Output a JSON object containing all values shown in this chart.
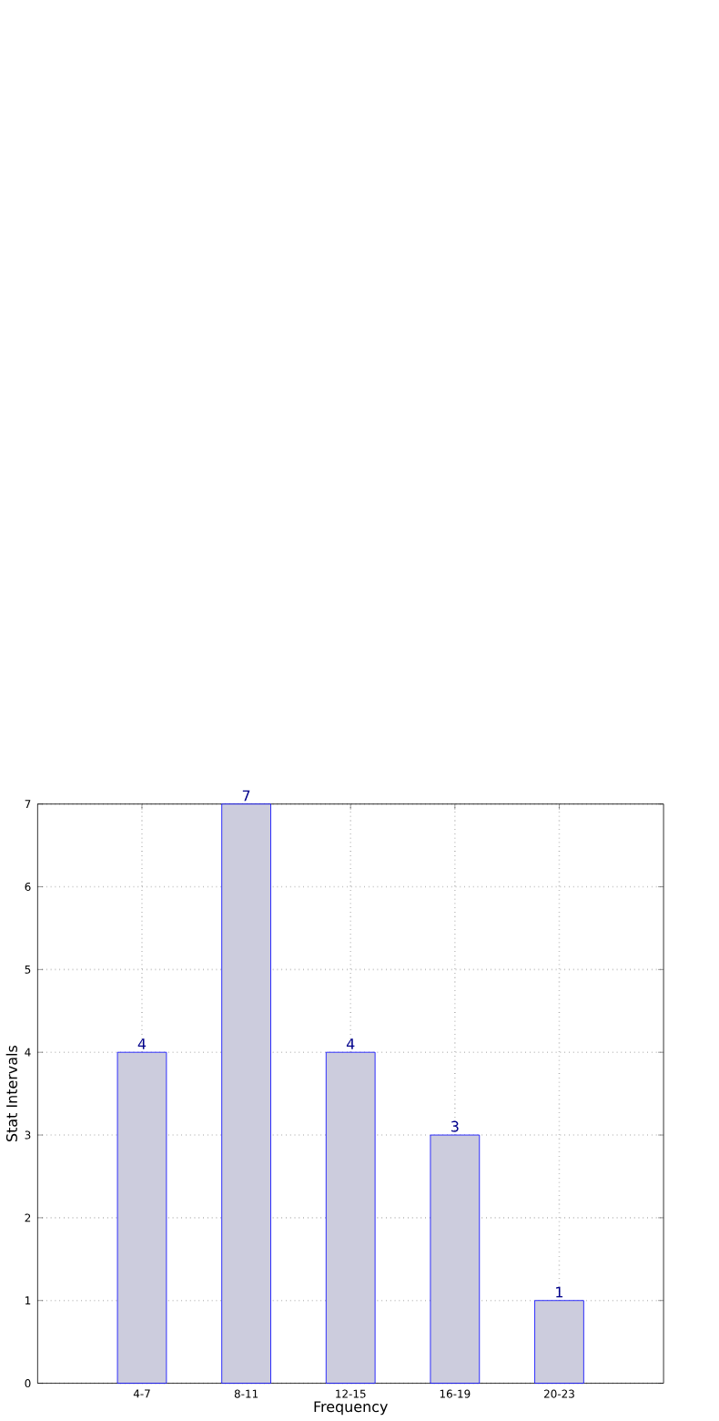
{
  "chart_data": {
    "type": "bar",
    "xlabel": "Frequency",
    "ylabel": "Stat Intervals",
    "categories": [
      "4-7",
      "8-11",
      "12-15",
      "16-19",
      "20-23"
    ],
    "values": [
      4,
      7,
      4,
      3,
      1
    ],
    "color": "#ccccdd",
    "ylim": [
      0,
      7
    ],
    "yticks": [
      0,
      1,
      2,
      3,
      4,
      5,
      6,
      7
    ],
    "grid": true,
    "data_labels": true
  }
}
